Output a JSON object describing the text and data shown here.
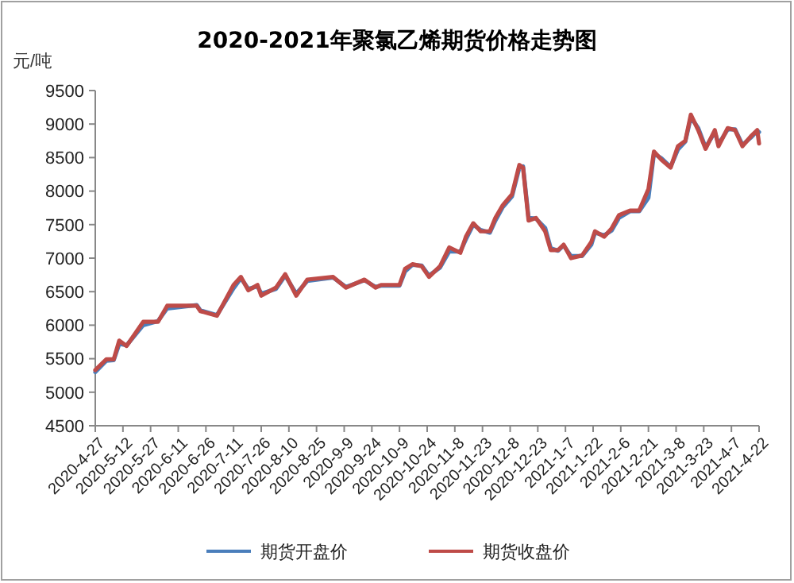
{
  "chart_data": {
    "type": "line",
    "title": "2020-2021年聚氯乙烯期货价格走势图",
    "ylabel": "元/吨",
    "x": [
      "2020-04-27",
      "2020-05-03",
      "2020-05-07",
      "2020-05-10",
      "2020-05-14",
      "2020-05-23",
      "2020-05-31",
      "2020-06-05",
      "2020-06-21",
      "2020-06-23",
      "2020-07-02",
      "2020-07-11",
      "2020-07-15",
      "2020-07-19",
      "2020-07-24",
      "2020-07-26",
      "2020-08-03",
      "2020-08-08",
      "2020-08-14",
      "2020-08-20",
      "2020-09-03",
      "2020-09-10",
      "2020-09-20",
      "2020-09-26",
      "2020-09-29",
      "2020-10-09",
      "2020-10-12",
      "2020-10-16",
      "2020-10-21",
      "2020-10-25",
      "2020-10-31",
      "2020-11-05",
      "2020-11-11",
      "2020-11-14",
      "2020-11-18",
      "2020-11-22",
      "2020-11-27",
      "2020-11-30",
      "2020-12-04",
      "2020-12-09",
      "2020-12-13",
      "2020-12-15",
      "2020-12-18",
      "2020-12-22",
      "2020-12-27",
      "2020-12-30",
      "2021-01-03",
      "2021-01-06",
      "2021-01-10",
      "2021-01-16",
      "2021-01-21",
      "2021-01-23",
      "2021-01-28",
      "2021-02-01",
      "2021-02-05",
      "2021-02-11",
      "2021-02-16",
      "2021-02-21",
      "2021-02-24",
      "2021-02-28",
      "2021-03-05",
      "2021-03-09",
      "2021-03-13",
      "2021-03-16",
      "2021-03-20",
      "2021-03-24",
      "2021-03-29",
      "2021-03-31",
      "2021-04-05",
      "2021-04-09",
      "2021-04-13",
      "2021-04-18",
      "2021-04-21",
      "2021-04-22"
    ],
    "series": [
      {
        "name": "期货开盘价",
        "color": "#4a7ebb",
        "values": [
          5300,
          5470,
          5480,
          5720,
          5700,
          6000,
          6060,
          6250,
          6300,
          6220,
          6150,
          6550,
          6700,
          6540,
          6580,
          6470,
          6540,
          6740,
          6470,
          6660,
          6710,
          6570,
          6670,
          6570,
          6590,
          6590,
          6800,
          6900,
          6890,
          6740,
          6860,
          7100,
          7100,
          7280,
          7500,
          7420,
          7380,
          7560,
          7760,
          7920,
          8350,
          8370,
          7600,
          7590,
          7450,
          7150,
          7110,
          7190,
          7030,
          7030,
          7200,
          7380,
          7340,
          7410,
          7600,
          7700,
          7700,
          7900,
          8560,
          8490,
          8360,
          8620,
          8740,
          9100,
          8940,
          8650,
          8880,
          8700,
          8920,
          8920,
          8690,
          8810,
          8900,
          8880
        ]
      },
      {
        "name": "期货收盘价",
        "color": "#be4b48",
        "values": [
          5330,
          5490,
          5490,
          5770,
          5690,
          6050,
          6050,
          6290,
          6290,
          6210,
          6140,
          6600,
          6720,
          6520,
          6600,
          6440,
          6560,
          6760,
          6440,
          6680,
          6720,
          6560,
          6680,
          6560,
          6600,
          6600,
          6840,
          6910,
          6880,
          6720,
          6880,
          7160,
          7080,
          7320,
          7520,
          7400,
          7400,
          7600,
          7790,
          7950,
          8390,
          8350,
          7560,
          7600,
          7400,
          7120,
          7120,
          7200,
          7000,
          7040,
          7240,
          7400,
          7320,
          7440,
          7640,
          7710,
          7710,
          8030,
          8590,
          8470,
          8350,
          8670,
          8750,
          9140,
          8910,
          8630,
          8910,
          8670,
          8940,
          8910,
          8670,
          8830,
          8910,
          8710
        ]
      }
    ],
    "xlim": [
      "2020-04-27",
      "2021-04-22"
    ],
    "xticks": [
      {
        "value": "2020-04-27",
        "label": "2020-4-27"
      },
      {
        "value": "2020-05-12",
        "label": "2020-5-12"
      },
      {
        "value": "2020-05-27",
        "label": "2020-5-27"
      },
      {
        "value": "2020-06-11",
        "label": "2020-6-11"
      },
      {
        "value": "2020-06-26",
        "label": "2020-6-26"
      },
      {
        "value": "2020-07-11",
        "label": "2020-7-11"
      },
      {
        "value": "2020-07-26",
        "label": "2020-7-26"
      },
      {
        "value": "2020-08-10",
        "label": "2020-8-10"
      },
      {
        "value": "2020-08-25",
        "label": "2020-8-25"
      },
      {
        "value": "2020-09-09",
        "label": "2020-9-9"
      },
      {
        "value": "2020-09-24",
        "label": "2020-9-24"
      },
      {
        "value": "2020-10-09",
        "label": "2020-10-9"
      },
      {
        "value": "2020-10-24",
        "label": "2020-10-24"
      },
      {
        "value": "2020-11-08",
        "label": "2020-11-8"
      },
      {
        "value": "2020-11-23",
        "label": "2020-11-23"
      },
      {
        "value": "2020-12-08",
        "label": "2020-12-8"
      },
      {
        "value": "2020-12-23",
        "label": "2020-12-23"
      },
      {
        "value": "2021-01-07",
        "label": "2021-1-7"
      },
      {
        "value": "2021-01-22",
        "label": "2021-1-22"
      },
      {
        "value": "2021-02-06",
        "label": "2021-2-6"
      },
      {
        "value": "2021-02-21",
        "label": "2021-2-21"
      },
      {
        "value": "2021-03-08",
        "label": "2021-3-8"
      },
      {
        "value": "2021-03-23",
        "label": "2021-3-23"
      },
      {
        "value": "2021-04-07",
        "label": "2021-4-7"
      },
      {
        "value": "2021-04-22",
        "label": "2021-4-22"
      }
    ],
    "ylim": [
      4500,
      9500
    ],
    "yticks": [
      4500,
      5000,
      5500,
      6000,
      6500,
      7000,
      7500,
      8000,
      8500,
      9000,
      9500
    ],
    "grid": false,
    "legend": "bottom",
    "marker": "none",
    "line_style": "solid"
  }
}
